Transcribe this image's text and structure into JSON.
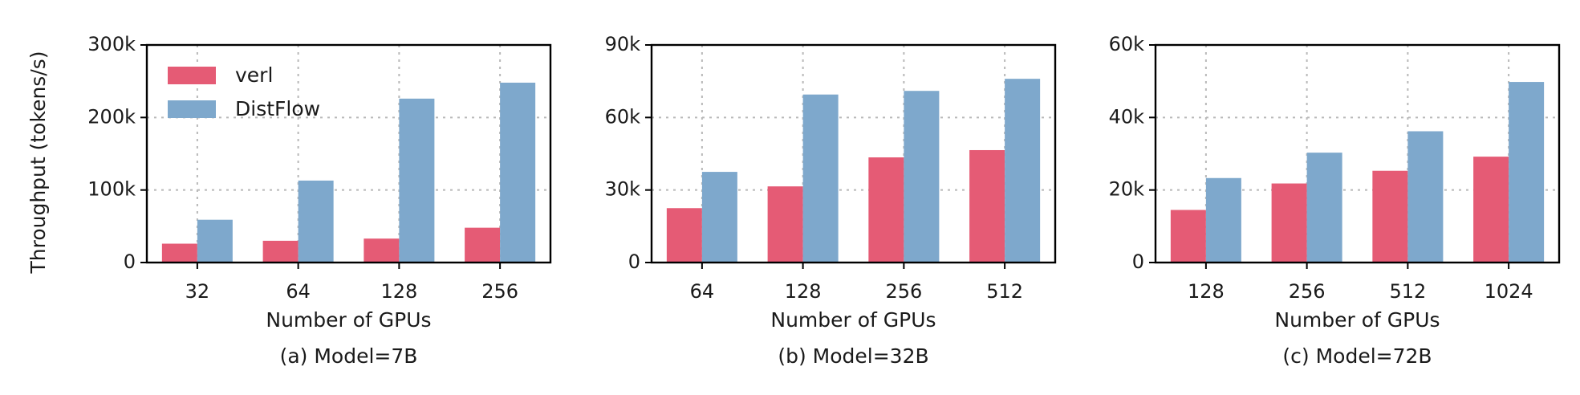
{
  "colors": {
    "verl": "#e55b75",
    "distflow": "#7ea8cc"
  },
  "y_axis_label": "Throughput (tokens/s)",
  "legend": [
    {
      "name": "verl",
      "color": "#e55b75"
    },
    {
      "name": "DistFlow",
      "color": "#7ea8cc"
    }
  ],
  "chart_data": [
    {
      "type": "bar",
      "caption": "(a) Model=7B",
      "xlabel": "Number of GPUs",
      "ylabel": "Throughput (tokens/s)",
      "categories": [
        "32",
        "64",
        "128",
        "256"
      ],
      "ylim": [
        0,
        300000
      ],
      "yticks": [
        0,
        100000,
        200000,
        300000
      ],
      "ytick_labels": [
        "0",
        "100k",
        "200k",
        "300k"
      ],
      "grid": true,
      "legend_position": "top-left",
      "series": [
        {
          "name": "verl",
          "values": [
            26000,
            30000,
            33000,
            48000
          ]
        },
        {
          "name": "DistFlow",
          "values": [
            59000,
            113000,
            226000,
            248000
          ]
        }
      ]
    },
    {
      "type": "bar",
      "caption": "(b) Model=32B",
      "xlabel": "Number of GPUs",
      "categories": [
        "64",
        "128",
        "256",
        "512"
      ],
      "ylim": [
        0,
        90000
      ],
      "yticks": [
        0,
        30000,
        60000,
        90000
      ],
      "ytick_labels": [
        "0",
        "30k",
        "60k",
        "90k"
      ],
      "grid": true,
      "series": [
        {
          "name": "verl",
          "values": [
            22500,
            31500,
            43500,
            46500
          ]
        },
        {
          "name": "DistFlow",
          "values": [
            37500,
            69500,
            71000,
            76000
          ]
        }
      ]
    },
    {
      "type": "bar",
      "caption": "(c) Model=72B",
      "xlabel": "Number of GPUs",
      "categories": [
        "128",
        "256",
        "512",
        "1024"
      ],
      "ylim": [
        0,
        60000
      ],
      "yticks": [
        0,
        20000,
        40000,
        60000
      ],
      "ytick_labels": [
        "0",
        "20k",
        "40k",
        "60k"
      ],
      "grid": true,
      "series": [
        {
          "name": "verl",
          "values": [
            14500,
            21800,
            25300,
            29200
          ]
        },
        {
          "name": "DistFlow",
          "values": [
            23300,
            30300,
            36200,
            49800
          ]
        }
      ]
    }
  ]
}
